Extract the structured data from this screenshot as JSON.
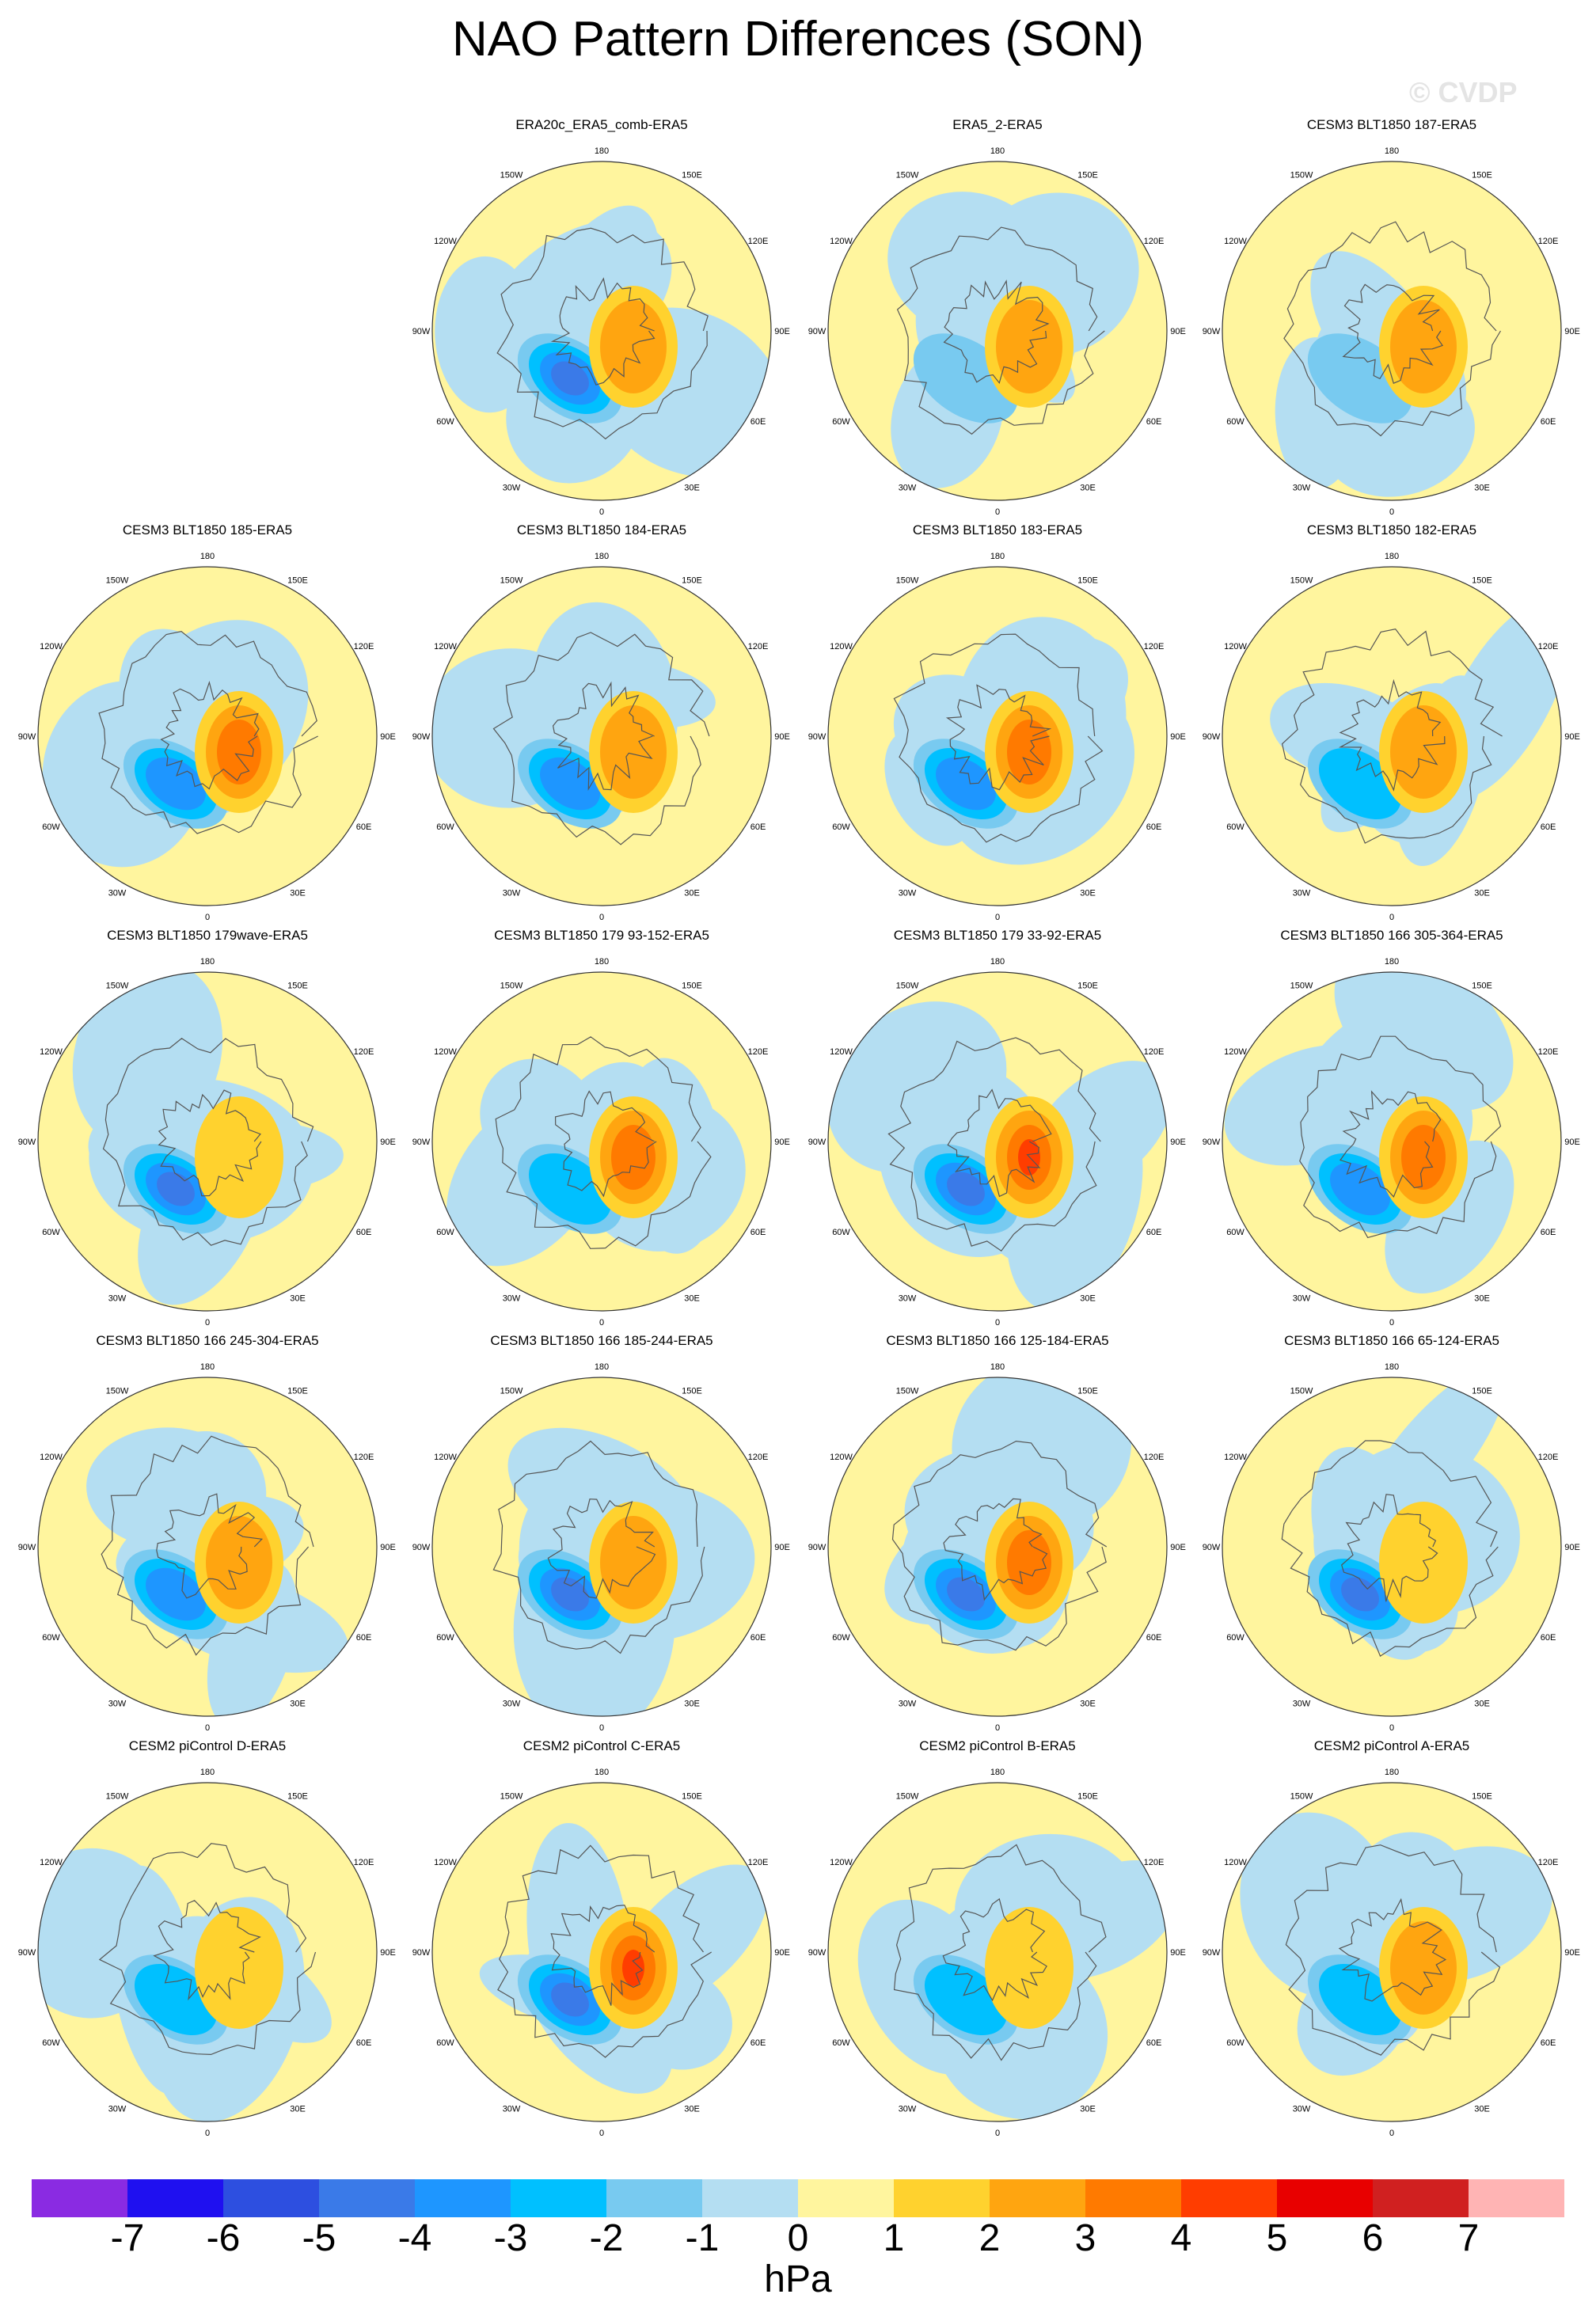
{
  "title": "NAO Pattern Differences (SON)",
  "watermark": "© CVDP",
  "unit": "hPa",
  "lon_labels": [
    "180",
    "150E",
    "120E",
    "90E",
    "60E",
    "30E",
    "0",
    "30W",
    "60W",
    "90W",
    "120W",
    "150W"
  ],
  "colorbar": {
    "tick_labels": [
      "-7",
      "-6",
      "-5",
      "-4",
      "-3",
      "-2",
      "-1",
      "0",
      "1",
      "2",
      "3",
      "4",
      "5",
      "6",
      "7"
    ],
    "colors": [
      "#8a2be2",
      "#1f10f0",
      "#2d4fe0",
      "#3a7ae8",
      "#1e96ff",
      "#00c0ff",
      "#78caf0",
      "#b4def2",
      "#fff59e",
      "#ffd22e",
      "#ffa510",
      "#ff7a00",
      "#ff3d00",
      "#e80000",
      "#d02020",
      "#ffb4b4"
    ]
  },
  "panels": [
    {
      "title": "ERA20c_ERA5_comb-ERA5",
      "row": 0,
      "col": 1
    },
    {
      "title": "ERA5_2-ERA5",
      "row": 0,
      "col": 2
    },
    {
      "title": "CESM3 BLT1850 187-ERA5",
      "row": 0,
      "col": 3
    },
    {
      "title": "CESM3 BLT1850 185-ERA5",
      "row": 1,
      "col": 0
    },
    {
      "title": "CESM3 BLT1850 184-ERA5",
      "row": 1,
      "col": 1
    },
    {
      "title": "CESM3 BLT1850 183-ERA5",
      "row": 1,
      "col": 2
    },
    {
      "title": "CESM3 BLT1850 182-ERA5",
      "row": 1,
      "col": 3
    },
    {
      "title": "CESM3 BLT1850 179wave-ERA5",
      "row": 2,
      "col": 0
    },
    {
      "title": "CESM3 BLT1850 179 93-152-ERA5",
      "row": 2,
      "col": 1
    },
    {
      "title": "CESM3 BLT1850 179 33-92-ERA5",
      "row": 2,
      "col": 2
    },
    {
      "title": "CESM3 BLT1850 166 305-364-ERA5",
      "row": 2,
      "col": 3
    },
    {
      "title": "CESM3 BLT1850 166 245-304-ERA5",
      "row": 3,
      "col": 0
    },
    {
      "title": "CESM3 BLT1850 166 185-244-ERA5",
      "row": 3,
      "col": 1
    },
    {
      "title": "CESM3 BLT1850 166 125-184-ERA5",
      "row": 3,
      "col": 2
    },
    {
      "title": "CESM3 BLT1850 166 65-124-ERA5",
      "row": 3,
      "col": 3
    },
    {
      "title": "CESM2 piControl D-ERA5",
      "row": 4,
      "col": 0
    },
    {
      "title": "CESM2 piControl C-ERA5",
      "row": 4,
      "col": 1
    },
    {
      "title": "CESM2 piControl B-ERA5",
      "row": 4,
      "col": 2
    },
    {
      "title": "CESM2 piControl A-ERA5",
      "row": 4,
      "col": 3
    }
  ],
  "chart_data": {
    "type": "heatmap",
    "title": "NAO Pattern Differences (SON)",
    "projection": "north polar stereographic",
    "units": "hPa",
    "contour_levels": [
      -7,
      -6,
      -5,
      -4,
      -3,
      -2,
      -1,
      0,
      1,
      2,
      3,
      4,
      5,
      6,
      7
    ],
    "colorbar_position": "bottom",
    "panels": [
      {
        "name": "ERA20c_ERA5_comb-ERA5",
        "min_approx": -4,
        "max_approx": 2
      },
      {
        "name": "ERA5_2-ERA5",
        "min_approx": -1,
        "max_approx": 2
      },
      {
        "name": "CESM3 BLT1850 187-ERA5",
        "min_approx": -1,
        "max_approx": 2
      },
      {
        "name": "CESM3 BLT1850 185-ERA5",
        "min_approx": -3,
        "max_approx": 3
      },
      {
        "name": "CESM3 BLT1850 184-ERA5",
        "min_approx": -3,
        "max_approx": 2
      },
      {
        "name": "CESM3 BLT1850 183-ERA5",
        "min_approx": -3,
        "max_approx": 3
      },
      {
        "name": "CESM3 BLT1850 182-ERA5",
        "min_approx": -2,
        "max_approx": 2
      },
      {
        "name": "CESM3 BLT1850 179wave-ERA5",
        "min_approx": -4,
        "max_approx": 1
      },
      {
        "name": "CESM3 BLT1850 179 93-152-ERA5",
        "min_approx": -2,
        "max_approx": 3
      },
      {
        "name": "CESM3 BLT1850 179 33-92-ERA5",
        "min_approx": -4,
        "max_approx": 4
      },
      {
        "name": "CESM3 BLT1850 166 305-364-ERA5",
        "min_approx": -3,
        "max_approx": 3
      },
      {
        "name": "CESM3 BLT1850 166 245-304-ERA5",
        "min_approx": -3,
        "max_approx": 2
      },
      {
        "name": "CESM3 BLT1850 166 185-244-ERA5",
        "min_approx": -4,
        "max_approx": 2
      },
      {
        "name": "CESM3 BLT1850 166 125-184-ERA5",
        "min_approx": -4,
        "max_approx": 3
      },
      {
        "name": "CESM3 BLT1850 166 65-124-ERA5",
        "min_approx": -4,
        "max_approx": 1
      },
      {
        "name": "CESM2 piControl D-ERA5",
        "min_approx": -2,
        "max_approx": 1
      },
      {
        "name": "CESM2 piControl C-ERA5",
        "min_approx": -4,
        "max_approx": 4
      },
      {
        "name": "CESM2 piControl B-ERA5",
        "min_approx": -2,
        "max_approx": 1
      },
      {
        "name": "CESM2 piControl A-ERA5",
        "min_approx": -2,
        "max_approx": 2
      }
    ]
  }
}
